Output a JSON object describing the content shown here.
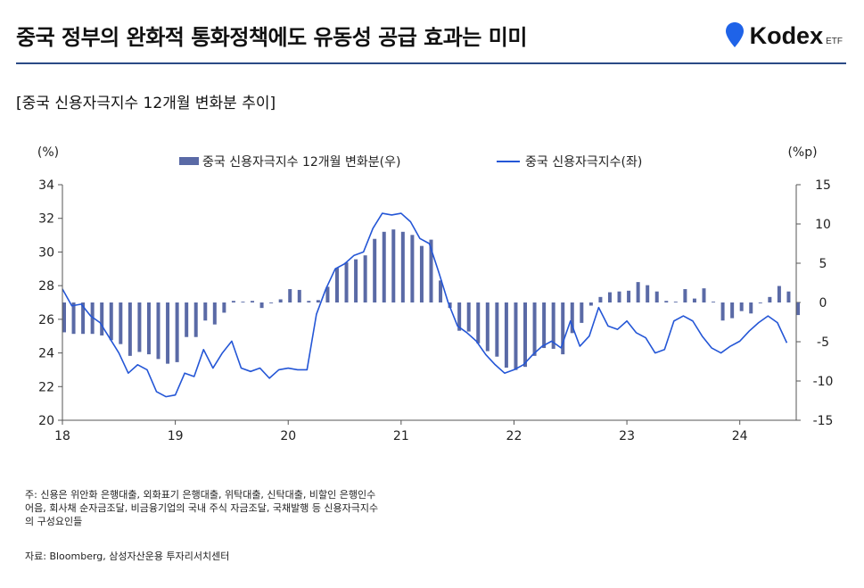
{
  "header": {
    "title": "중국 정부의 완화적 통화정책에도 유동성 공급 효과는 미미",
    "subtitle": "[중국 신용자극지수 12개월 변화분 추이]",
    "logo_text": "Kodex",
    "logo_suffix": "ETF"
  },
  "colors": {
    "bar": "#5a6aa6",
    "line": "#2456d6",
    "rule": "#2b4a86",
    "logo_pin": "#1f63e8"
  },
  "chart_data": {
    "type": "bar+line",
    "left_unit": "(%)",
    "right_unit": "(%p)",
    "legend": {
      "bar_label": "중국 신용자극지수 12개월 변화분(우)",
      "line_label": "중국 신용자극지수(좌)"
    },
    "left_axis": {
      "min": 20,
      "max": 34,
      "ticks": [
        "20",
        "22",
        "24",
        "26",
        "28",
        "30",
        "32",
        "34"
      ]
    },
    "right_axis": {
      "min": -15,
      "max": 15,
      "ticks": [
        "-15",
        "-10",
        "-5",
        "0",
        "5",
        "10",
        "15"
      ]
    },
    "x_axis": {
      "start": 2018.0,
      "end": 2024.5,
      "ticks": [
        "18",
        "19",
        "20",
        "21",
        "22",
        "23",
        "24"
      ]
    },
    "bar_series": {
      "name": "중국 신용자극지수 12개월 변화분(우)",
      "start": 2018.0,
      "step_months": 1,
      "values": [
        -3.8,
        -4.0,
        -4.0,
        -4.0,
        -4.2,
        -4.8,
        -5.3,
        -6.8,
        -6.3,
        -6.6,
        -7.2,
        -7.8,
        -7.6,
        -4.4,
        -4.4,
        -2.3,
        -2.8,
        -1.3,
        0.2,
        0.1,
        0.2,
        -0.7,
        -0.1,
        0.4,
        1.7,
        1.6,
        0.2,
        0.3,
        2.0,
        4.4,
        5.1,
        5.5,
        6.0,
        8.1,
        9.0,
        9.3,
        9.0,
        8.6,
        7.2,
        8.0,
        2.8,
        -0.7,
        -3.6,
        -3.7,
        -5.2,
        -6.2,
        -6.9,
        -8.3,
        -8.6,
        -8.2,
        -6.8,
        -5.8,
        -5.9,
        -6.6,
        -3.9,
        -2.6,
        -0.4,
        0.7,
        1.3,
        1.4,
        1.5,
        2.6,
        2.2,
        1.4,
        0.2,
        0.1,
        1.7,
        0.5,
        1.8,
        0.1,
        -2.3,
        -2.0,
        -1.1,
        -1.4,
        -0.1,
        0.7,
        2.1,
        1.4,
        -1.6
      ]
    },
    "line_series": {
      "name": "중국 신용자극지수(좌)",
      "start": 2018.0,
      "step_months": 1,
      "values": [
        27.8,
        26.8,
        26.9,
        26.2,
        25.8,
        24.9,
        24.0,
        22.8,
        23.3,
        23.0,
        21.7,
        21.4,
        21.5,
        22.8,
        22.6,
        24.2,
        23.1,
        24.0,
        24.7,
        23.1,
        22.9,
        23.1,
        22.5,
        23.0,
        23.1,
        23.0,
        23.0,
        26.3,
        27.8,
        29.0,
        29.3,
        29.8,
        30.0,
        31.4,
        32.3,
        32.2,
        32.3,
        31.8,
        30.8,
        30.5,
        28.8,
        27.0,
        25.6,
        25.2,
        24.7,
        23.9,
        23.3,
        22.8,
        23.0,
        23.3,
        23.9,
        24.4,
        24.7,
        24.3,
        25.9,
        24.4,
        25.0,
        26.7,
        25.6,
        25.4,
        25.9,
        25.2,
        24.9,
        24.0,
        24.2,
        25.9,
        26.2,
        25.9,
        25.0,
        24.3,
        24.0,
        24.4,
        24.7,
        25.3,
        25.8,
        26.2,
        25.8,
        24.6
      ]
    }
  },
  "footer": {
    "note_lines": [
      "주: 신용은 위안화 은행대출, 외화표기 은행대출, 위탁대출, 신탁대출, 비할인 은행인수",
      "어음, 회사채 순자금조달, 비금융기업의 국내 주식 자금조달, 국채발행 등 신용자극지수",
      "의 구성요인들"
    ],
    "source": "자료: Bloomberg, 삼성자산운용 투자리서치센터"
  }
}
